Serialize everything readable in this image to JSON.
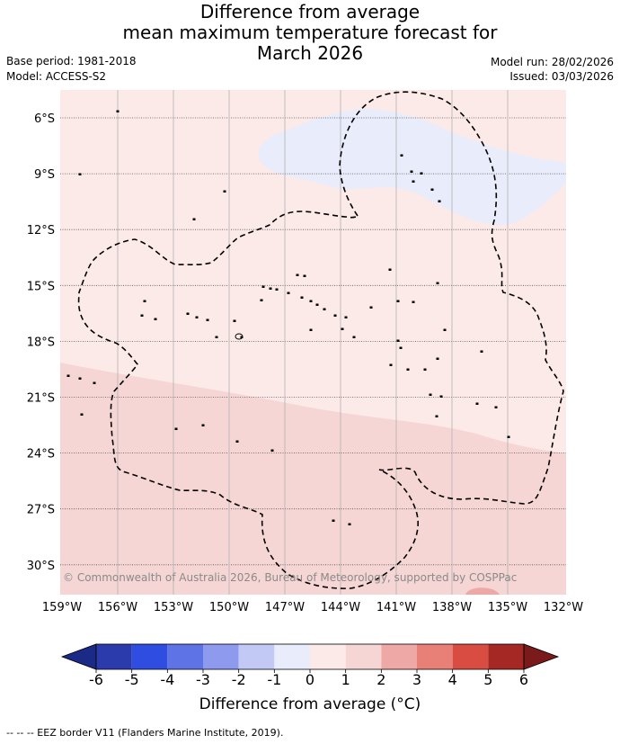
{
  "title": {
    "line1": "Difference from average",
    "line2": "mean maximum temperature forecast for",
    "line3": "March 2026"
  },
  "meta": {
    "base_period": "Base period: 1981-2018",
    "model": "Model: ACCESS-S2",
    "model_run": "Model run: 28/02/2026",
    "issued": "Issued: 03/03/2026"
  },
  "map": {
    "lat_labels": [
      "6°S",
      "9°S",
      "12°S",
      "15°S",
      "18°S",
      "21°S",
      "24°S",
      "27°S",
      "30°S"
    ],
    "lon_labels": [
      "159°W",
      "156°W",
      "153°W",
      "150°W",
      "147°W",
      "144°W",
      "141°W",
      "138°W",
      "135°W",
      "132°W"
    ],
    "copyright": "© Commonwealth of Australia 2026, Bureau of Meteorology, supported by COSPPac",
    "colors": {
      "category_0_1": "#fceae8",
      "category_1_2": "#f5d6d4",
      "category_m1_0": "#e8ecfb",
      "category_2_3": "#eea9a7",
      "grid": "#b0b0b0",
      "eez": "#000000"
    }
  },
  "colorbar": {
    "ticks": [
      "-6",
      "-5",
      "-4",
      "-3",
      "-2",
      "-1",
      "0",
      "1",
      "2",
      "3",
      "4",
      "5",
      "6"
    ],
    "colors": [
      "#2b3bab",
      "#2f4de0",
      "#5d73e6",
      "#8d9aee",
      "#c3c9f5",
      "#e8ecfb",
      "#fceae8",
      "#f5d6d4",
      "#eea9a7",
      "#e98078",
      "#d94c41",
      "#a52824"
    ],
    "extend_low": "#1b2a86",
    "extend_high": "#7a1a1a",
    "label": "Difference from average (°C)"
  },
  "footer": "-- -- -- EEZ border V11 (Flanders Marine Institute, 2019)."
}
